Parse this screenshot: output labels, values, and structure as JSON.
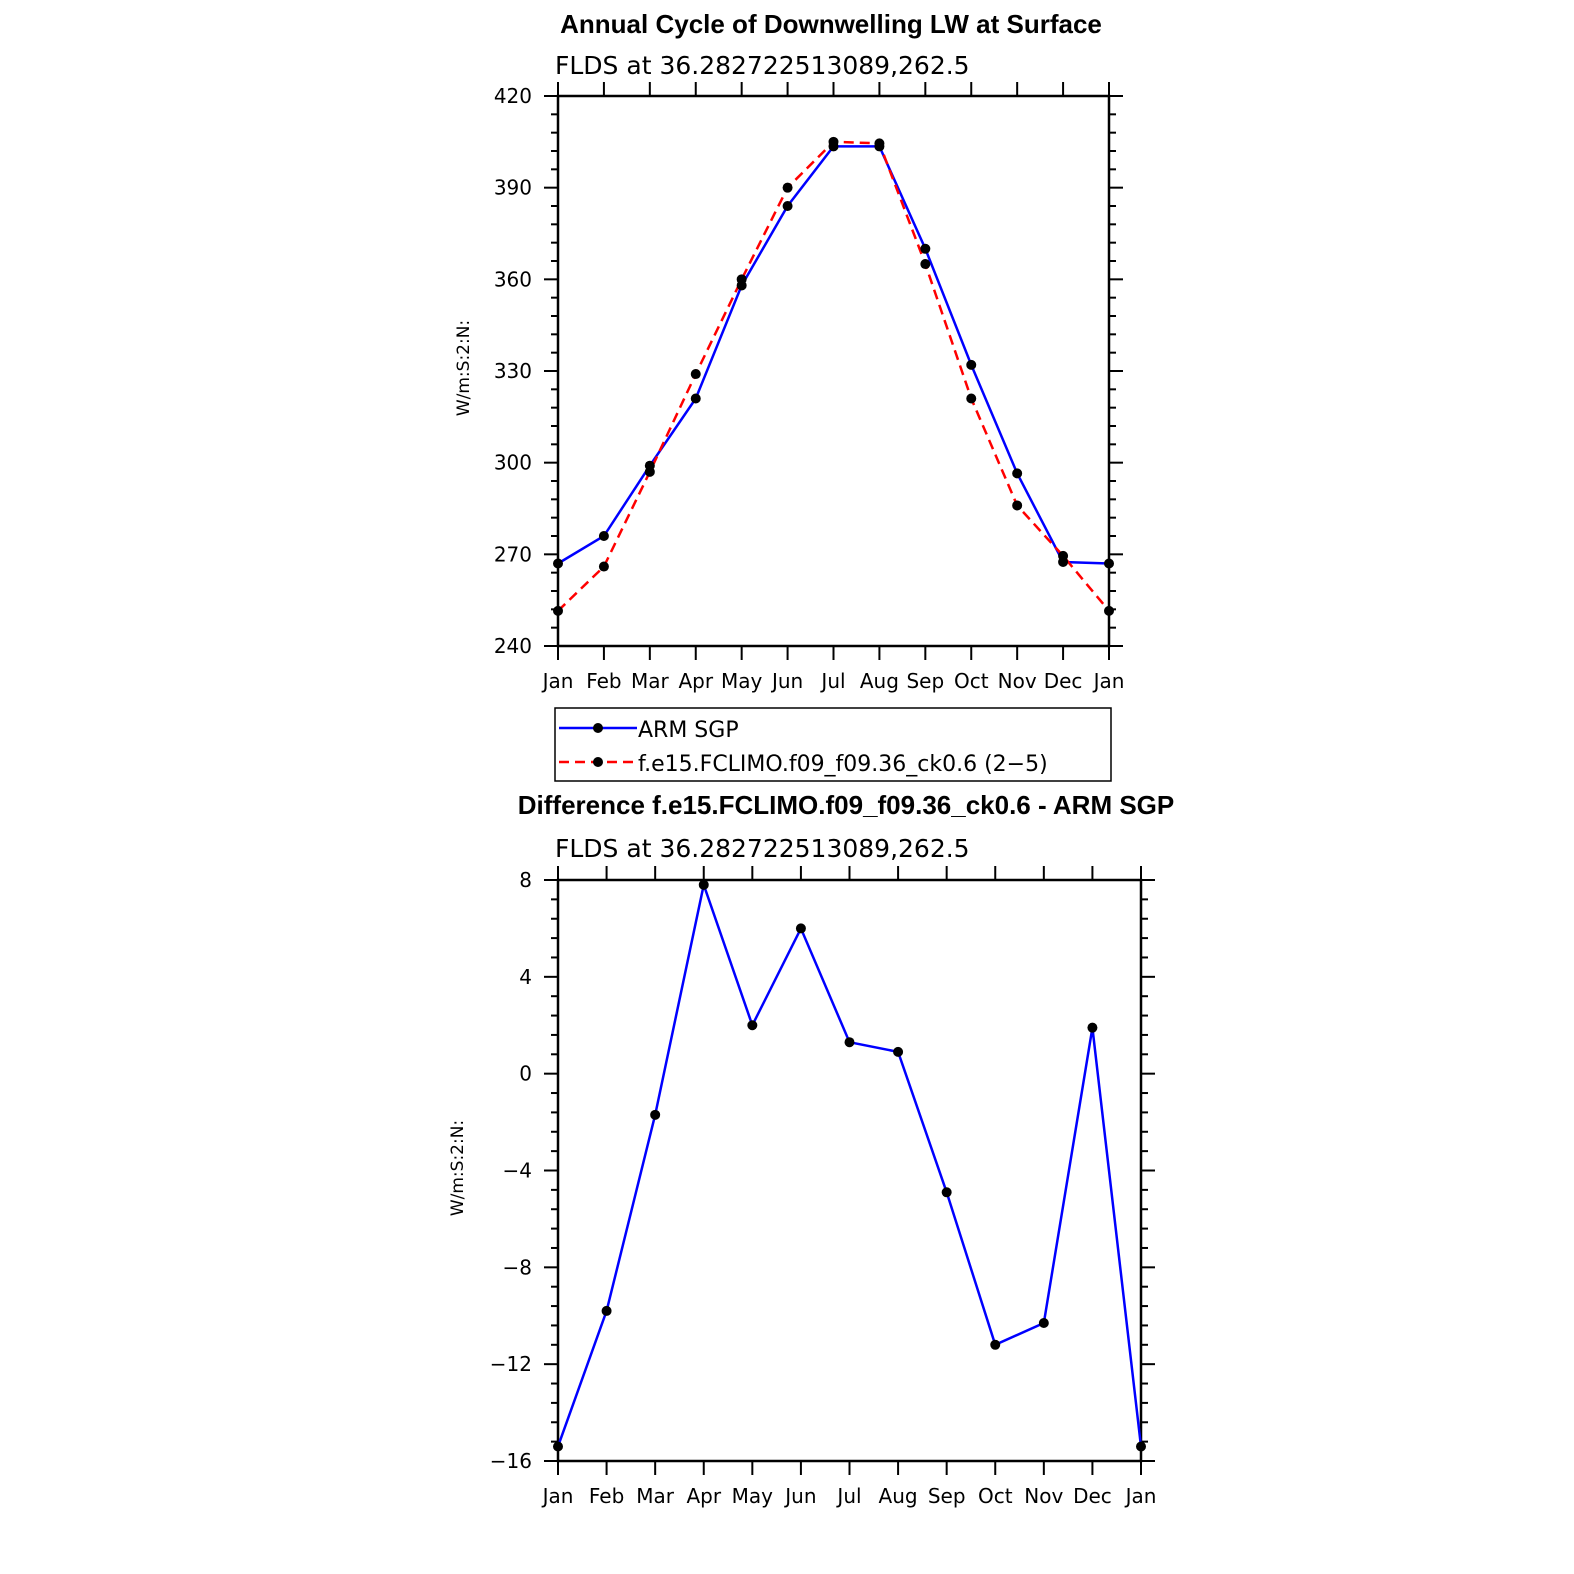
{
  "chart_data": [
    {
      "type": "line",
      "title": "Annual Cycle of Downwelling LW at Surface",
      "subtitle": "FLDS at 36.282722513089,262.5",
      "ylabel": "W/m:S:2:N:",
      "xlabel": "",
      "categories": [
        "Jan",
        "Feb",
        "Mar",
        "Apr",
        "May",
        "Jun",
        "Jul",
        "Aug",
        "Sep",
        "Oct",
        "Nov",
        "Dec",
        "Jan"
      ],
      "ylim": [
        240,
        420
      ],
      "yticks": [
        240,
        270,
        300,
        330,
        360,
        390,
        420
      ],
      "series": [
        {
          "name": "ARM SGP",
          "color": "#0000ff",
          "dash": "solid",
          "values": [
            267.0,
            276.0,
            299.0,
            321.0,
            358.0,
            384.0,
            403.5,
            403.5,
            370.0,
            332.0,
            296.5,
            267.5,
            267.0
          ]
        },
        {
          "name": "f.e15.FCLIMO.f09_f09.36_ck0.6 (2−5)",
          "color": "#ff0000",
          "dash": "dashed",
          "values": [
            251.5,
            266.0,
            297.0,
            329.0,
            360.0,
            390.0,
            405.0,
            404.5,
            365.0,
            321.0,
            286.0,
            269.5,
            251.5
          ]
        }
      ],
      "legend": "below"
    },
    {
      "type": "line",
      "title": "Difference f.e15.FCLIMO.f09_f09.36_ck0.6 - ARM SGP",
      "subtitle": "FLDS at 36.282722513089,262.5",
      "ylabel": "W/m:S:2:N:",
      "xlabel": "",
      "categories": [
        "Jan",
        "Feb",
        "Mar",
        "Apr",
        "May",
        "Jun",
        "Jul",
        "Aug",
        "Sep",
        "Oct",
        "Nov",
        "Dec",
        "Jan"
      ],
      "ylim": [
        -16,
        8
      ],
      "yticks": [
        -16,
        -12,
        -8,
        -4,
        0,
        4,
        8
      ],
      "ytick_labels": [
        "−16",
        "−12",
        "−8",
        "−4",
        "0",
        "4",
        "8"
      ],
      "series": [
        {
          "name": "",
          "color": "#0000ff",
          "dash": "solid",
          "values": [
            -15.4,
            -9.8,
            -1.7,
            7.8,
            2.0,
            6.0,
            1.3,
            0.9,
            -4.9,
            -11.2,
            -10.3,
            1.9,
            -15.4
          ]
        }
      ]
    }
  ]
}
